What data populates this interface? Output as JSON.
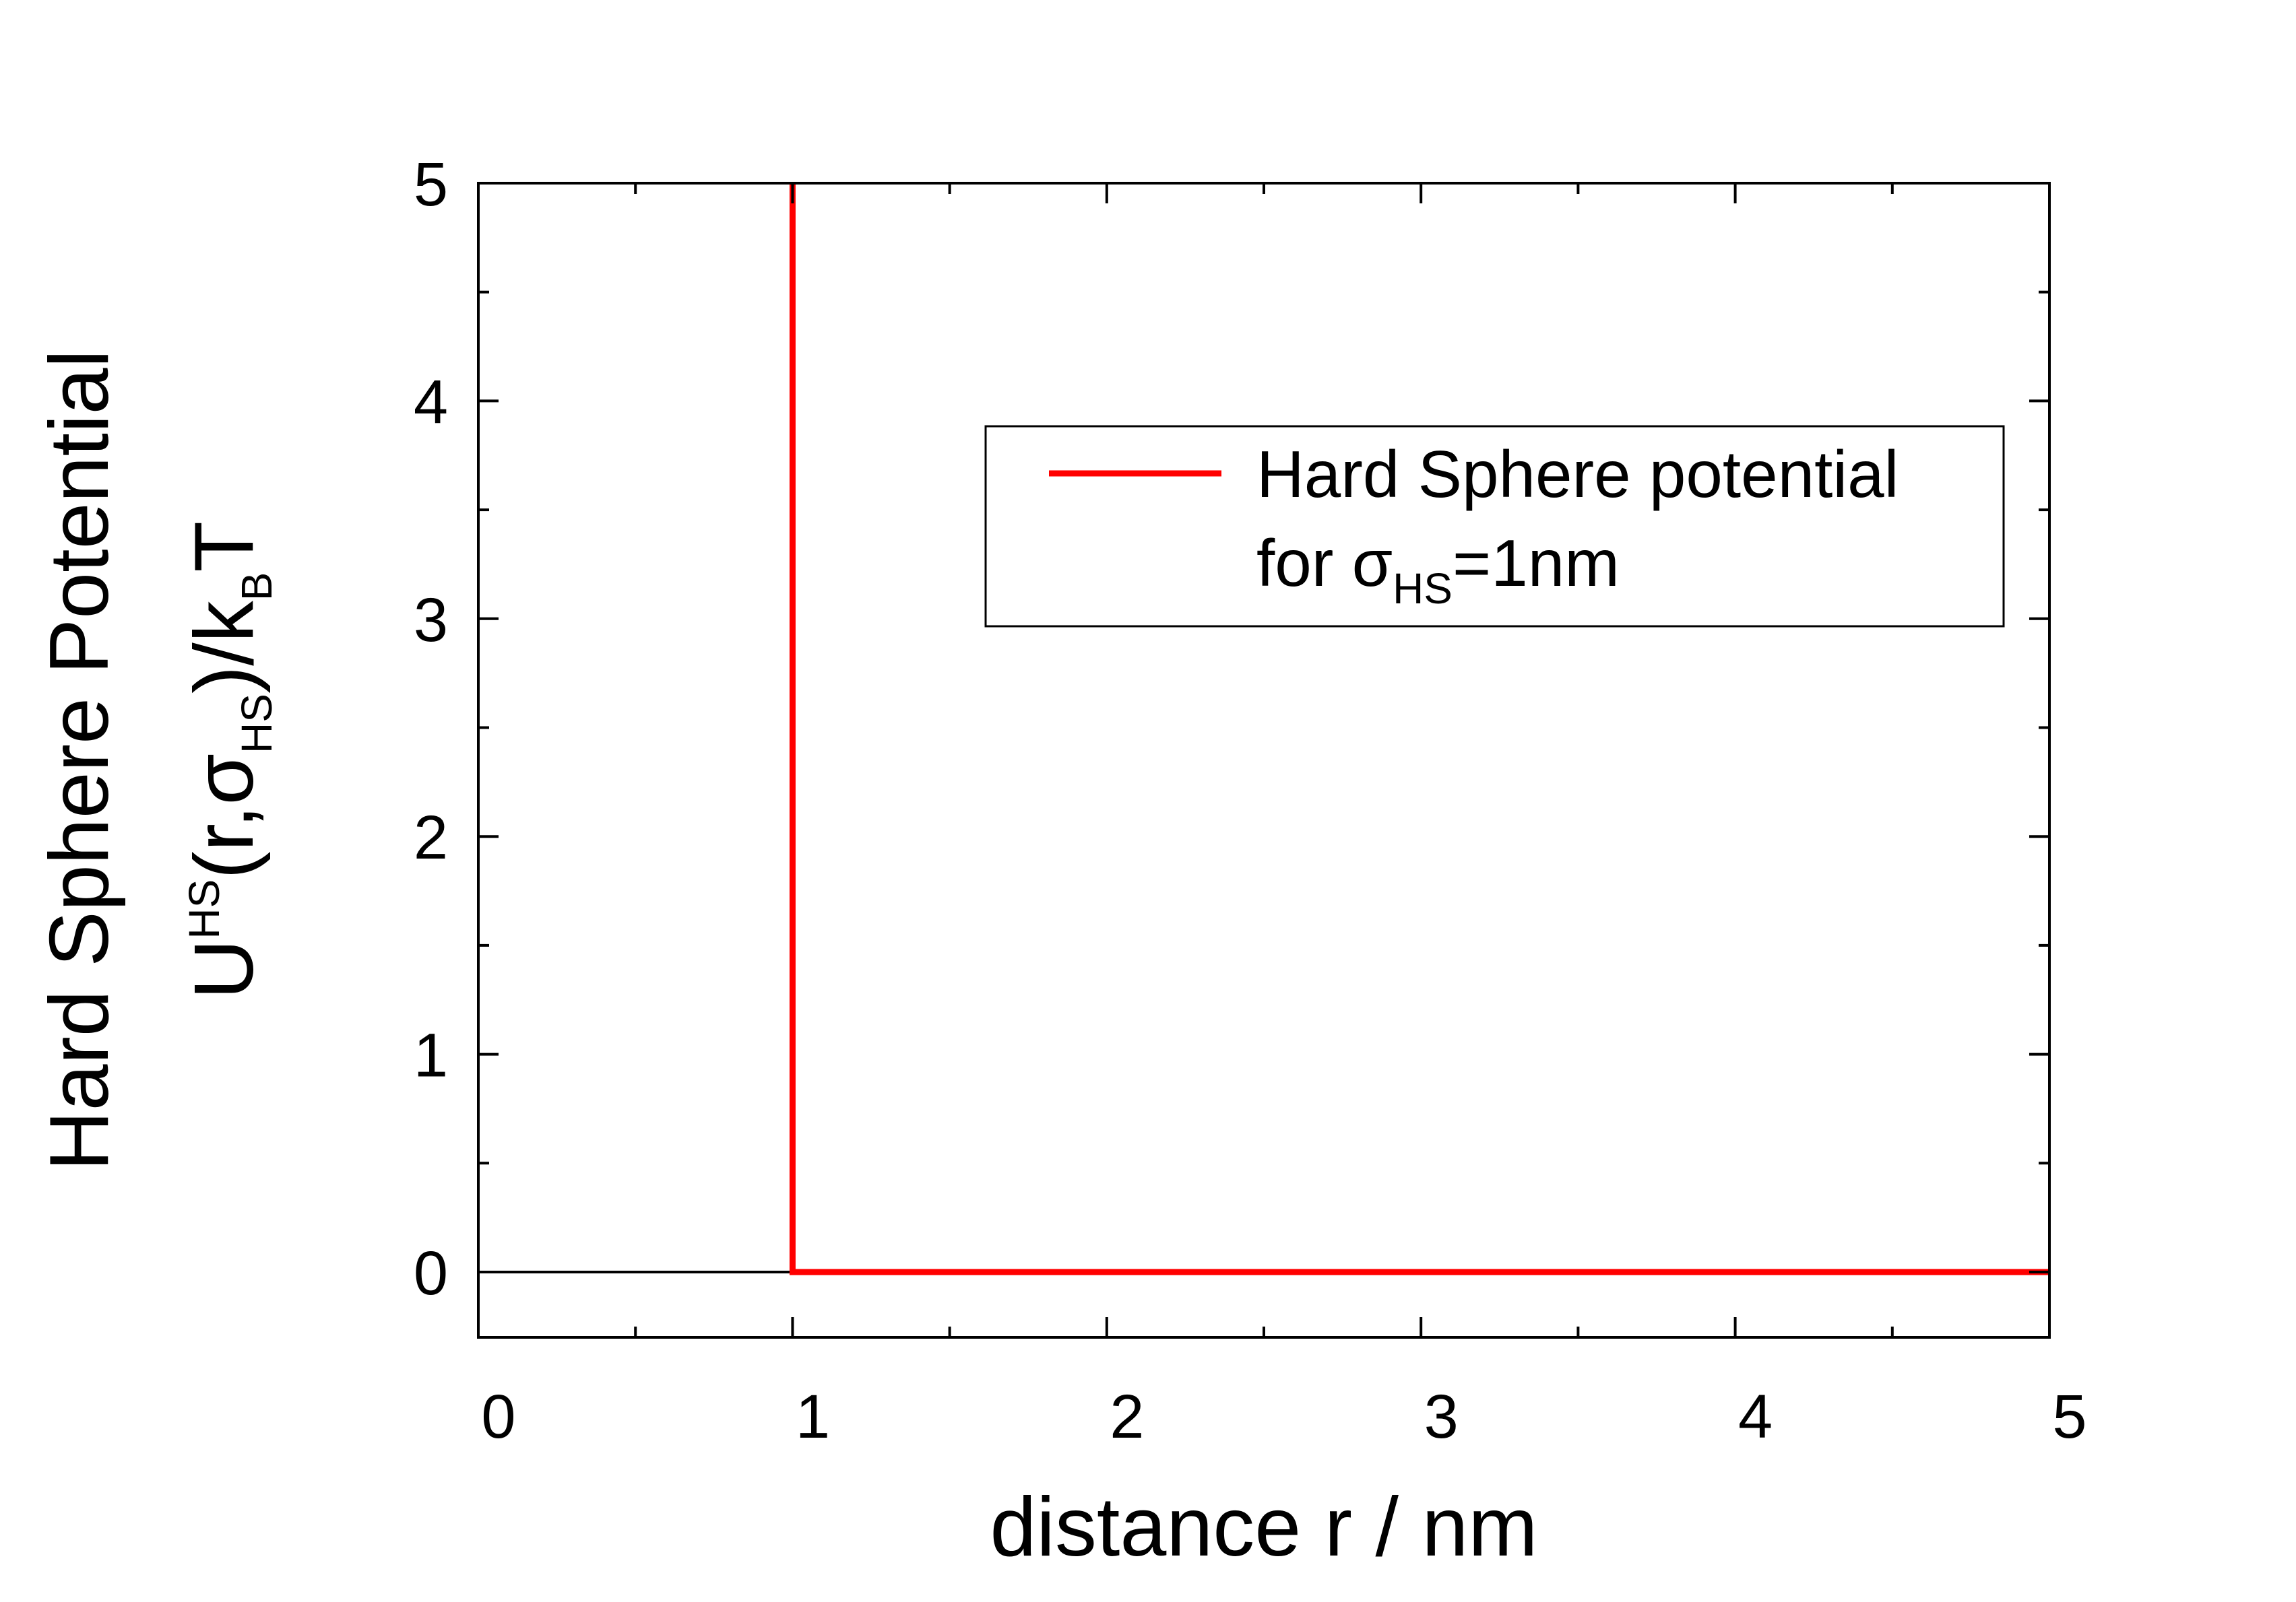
{
  "chart_data": {
    "type": "line",
    "title": "",
    "xlabel": "distance r / nm",
    "ylabel": {
      "line1": "Hard Sphere Potential",
      "line2": {
        "U": "U",
        "sup_HS": "HS",
        "open": "(r,",
        "sigma": "σ",
        "sub_HS": "HS",
        "close": ")/k",
        "sub_B": "B",
        "T": "T"
      }
    },
    "xlim": [
      0,
      5
    ],
    "ylim": [
      -0.3,
      5
    ],
    "xticks": [
      0,
      1,
      2,
      3,
      4,
      5
    ],
    "yticks": [
      0,
      1,
      2,
      3,
      4,
      5
    ],
    "grid": false,
    "legend_position": "top-right",
    "series": [
      {
        "name": {
          "line1": "Hard Sphere potential",
          "line2_prefix": "for ",
          "sigma": "σ",
          "sub_HS": "HS",
          "line2_suffix": "=1nm"
        },
        "color": "#ff0000",
        "x": [
          1,
          1,
          5
        ],
        "y": [
          5,
          0,
          0
        ]
      }
    ],
    "reference_lines": [
      {
        "y": 0,
        "x_range": [
          0,
          1
        ],
        "color": "#000000"
      }
    ]
  }
}
